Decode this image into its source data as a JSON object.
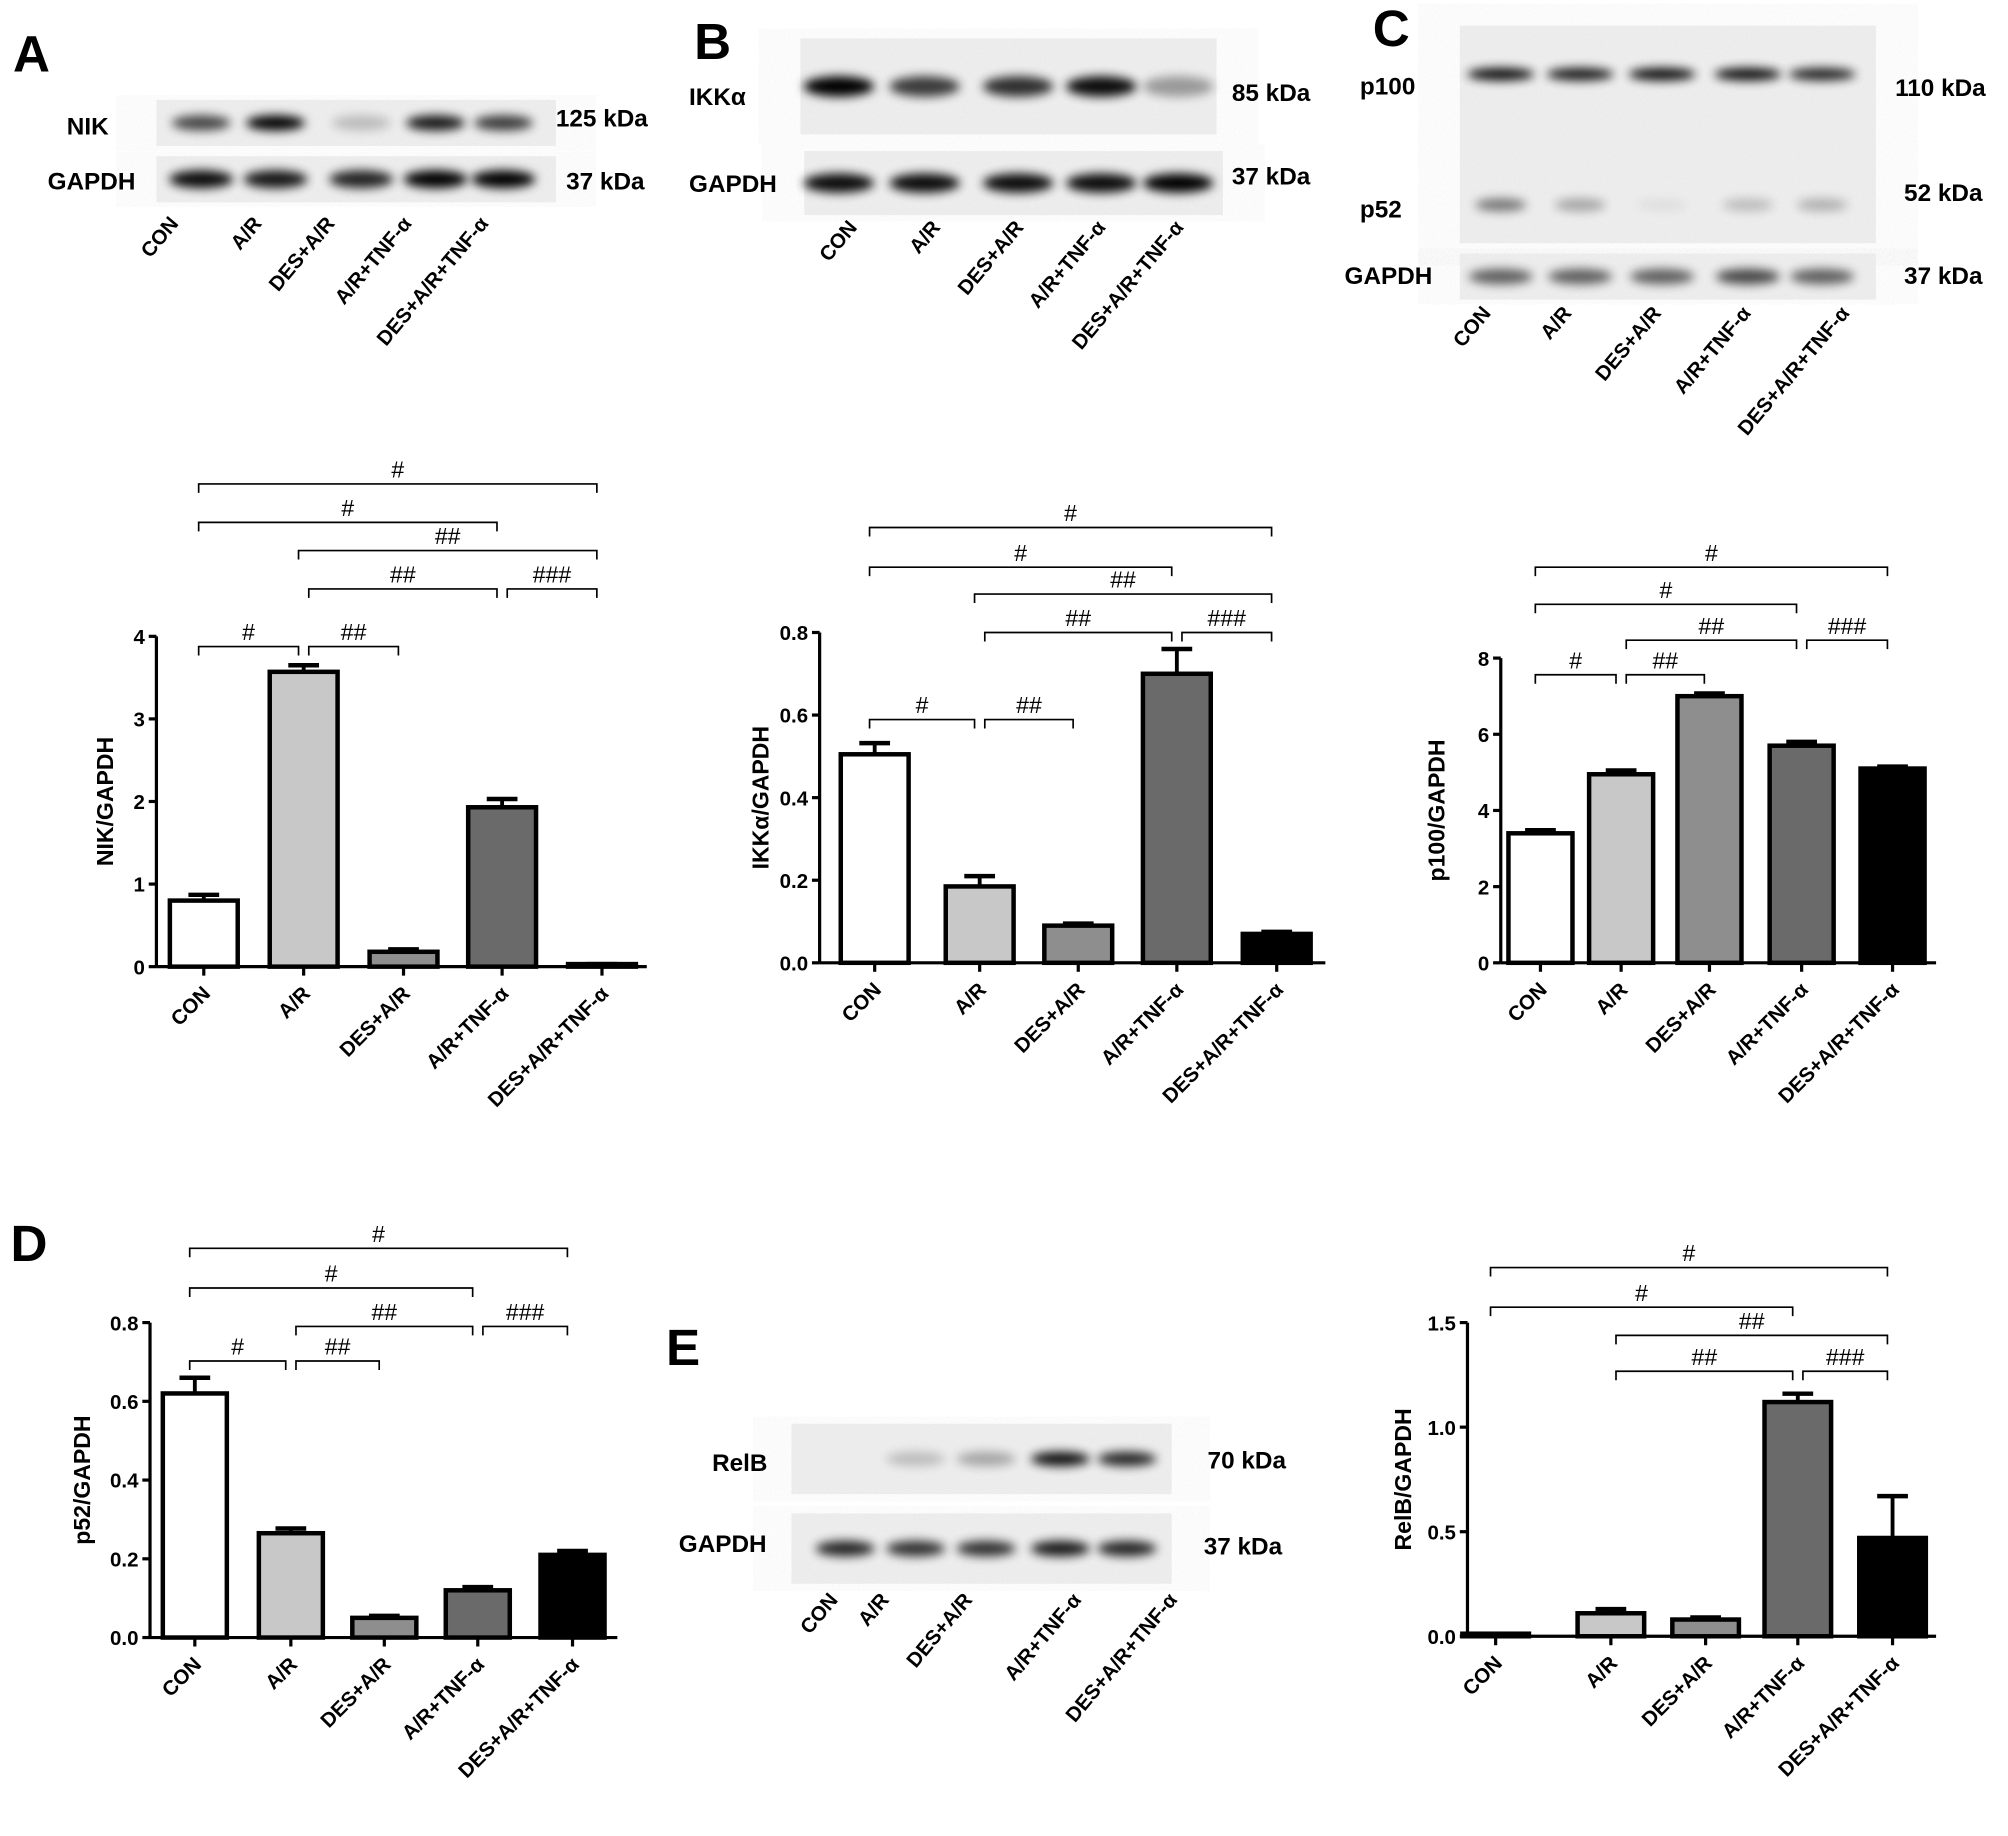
{
  "groups": [
    "CON",
    "A/R",
    "DES+A/R",
    "A/R+TNF-α",
    "DES+A/R+TNF-α"
  ],
  "colors": {
    "CON": "#ffffff",
    "A/R": "#c8c8c8",
    "DES+A/R": "#8e8e8e",
    "A/R+TNF-α": "#6a6a6a",
    "DES+A/R+TNF-α": "#000000"
  },
  "blots": [
    {
      "panel": "A",
      "rows": [
        {
          "protein": "NIK",
          "size": "125 kDa"
        },
        {
          "protein": "GAPDH",
          "size": "37 kDa"
        }
      ]
    },
    {
      "panel": "B",
      "rows": [
        {
          "protein": "IKKα",
          "size": "85 kDa"
        },
        {
          "protein": "GAPDH",
          "size": "37 kDa"
        }
      ]
    },
    {
      "panel": "C",
      "rows": [
        {
          "protein": "p100",
          "size": "110 kDa"
        },
        {
          "protein": "p52",
          "size": "52 kDa"
        },
        {
          "protein": "GAPDH",
          "size": "37 kDa"
        }
      ]
    },
    {
      "panel": "E",
      "rows": [
        {
          "protein": "RelB",
          "size": "70 kDa"
        },
        {
          "protein": "GAPDH",
          "size": "37 kDa"
        }
      ]
    }
  ],
  "panel_letters": [
    "A",
    "B",
    "C",
    "D",
    "E"
  ],
  "chart_data": [
    {
      "type": "bar",
      "panel": "A",
      "ylabel": "NIK/GAPDH",
      "ylim": [
        0,
        4
      ],
      "yticks": [
        "0",
        "1",
        "2",
        "3",
        "4"
      ],
      "categories": [
        "CON",
        "A/R",
        "DES+A/R",
        "A/R+TNF-α",
        "DES+A/R+TNF-α"
      ],
      "values": [
        0.8,
        3.57,
        0.18,
        1.93,
        0.02
      ],
      "errors": [
        0.07,
        0.08,
        0.03,
        0.1,
        0.01
      ],
      "comparisons": [
        {
          "from": 0,
          "to": 1,
          "label": "#"
        },
        {
          "from": 1,
          "to": 2,
          "label": "##"
        },
        {
          "from": 1,
          "to": 3,
          "label": "##"
        },
        {
          "from": 3,
          "to": 4,
          "label": "###"
        },
        {
          "from": 1,
          "to": 4,
          "label": "##"
        },
        {
          "from": 0,
          "to": 3,
          "label": "#"
        },
        {
          "from": 0,
          "to": 4,
          "label": "#"
        }
      ]
    },
    {
      "type": "bar",
      "panel": "B",
      "ylabel": "IKKα/GAPDH",
      "ylim": [
        0,
        0.8
      ],
      "yticks": [
        "0.0",
        "0.2",
        "0.4",
        "0.6",
        "0.8"
      ],
      "categories": [
        "CON",
        "A/R",
        "DES+A/R",
        "A/R+TNF-α",
        "DES+A/R+TNF-α"
      ],
      "values": [
        0.505,
        0.185,
        0.09,
        0.7,
        0.07
      ],
      "errors": [
        0.027,
        0.025,
        0.005,
        0.06,
        0.005
      ],
      "comparisons": [
        {
          "from": 0,
          "to": 1,
          "label": "#"
        },
        {
          "from": 1,
          "to": 2,
          "label": "##"
        },
        {
          "from": 1,
          "to": 3,
          "label": "##"
        },
        {
          "from": 3,
          "to": 4,
          "label": "###"
        },
        {
          "from": 1,
          "to": 4,
          "label": "##"
        },
        {
          "from": 0,
          "to": 3,
          "label": "#"
        },
        {
          "from": 0,
          "to": 4,
          "label": "#"
        }
      ]
    },
    {
      "type": "bar",
      "panel": "C",
      "ylabel": "p100/GAPDH",
      "ylim": [
        0,
        8
      ],
      "yticks": [
        "0",
        "2",
        "4",
        "6",
        "8"
      ],
      "categories": [
        "CON",
        "A/R",
        "DES+A/R",
        "A/R+TNF-α",
        "DES+A/R+TNF-α"
      ],
      "values": [
        3.4,
        4.95,
        7.0,
        5.7,
        5.1
      ],
      "errors": [
        0.08,
        0.1,
        0.07,
        0.1,
        0.05
      ],
      "comparisons": [
        {
          "from": 0,
          "to": 1,
          "label": "#"
        },
        {
          "from": 1,
          "to": 2,
          "label": "##"
        },
        {
          "from": 1,
          "to": 3,
          "label": "##"
        },
        {
          "from": 3,
          "to": 4,
          "label": "###"
        },
        {
          "from": 0,
          "to": 3,
          "label": "#"
        },
        {
          "from": 0,
          "to": 4,
          "label": "#"
        }
      ]
    },
    {
      "type": "bar",
      "panel": "D",
      "ylabel": "p52/GAPDH",
      "ylim": [
        0,
        0.8
      ],
      "yticks": [
        "0.0",
        "0.2",
        "0.4",
        "0.6",
        "0.8"
      ],
      "categories": [
        "CON",
        "A/R",
        "DES+A/R",
        "A/R+TNF-α",
        "DES+A/R+TNF-α"
      ],
      "values": [
        0.62,
        0.265,
        0.05,
        0.12,
        0.21
      ],
      "errors": [
        0.04,
        0.012,
        0.005,
        0.008,
        0.01
      ],
      "comparisons": [
        {
          "from": 0,
          "to": 1,
          "label": "#"
        },
        {
          "from": 1,
          "to": 2,
          "label": "##"
        },
        {
          "from": 1,
          "to": 3,
          "label": "##"
        },
        {
          "from": 3,
          "to": 4,
          "label": "###"
        },
        {
          "from": 0,
          "to": 3,
          "label": "#"
        },
        {
          "from": 0,
          "to": 4,
          "label": "#"
        }
      ]
    },
    {
      "type": "bar",
      "panel": "E",
      "ylabel": "RelB/GAPDH",
      "ylim": [
        0,
        1.5
      ],
      "yticks": [
        "0.0",
        "0.5",
        "1.0",
        "1.5"
      ],
      "categories": [
        "CON",
        "A/R",
        "DES+A/R",
        "A/R+TNF-α",
        "DES+A/R+TNF-α"
      ],
      "values": [
        0.005,
        0.11,
        0.08,
        1.12,
        0.47
      ],
      "errors": [
        0.002,
        0.02,
        0.01,
        0.04,
        0.2
      ],
      "comparisons": [
        {
          "from": 1,
          "to": 3,
          "label": "##"
        },
        {
          "from": 3,
          "to": 4,
          "label": "###"
        },
        {
          "from": 1,
          "to": 4,
          "label": "##"
        },
        {
          "from": 0,
          "to": 3,
          "label": "#"
        },
        {
          "from": 0,
          "to": 4,
          "label": "#"
        }
      ]
    }
  ]
}
